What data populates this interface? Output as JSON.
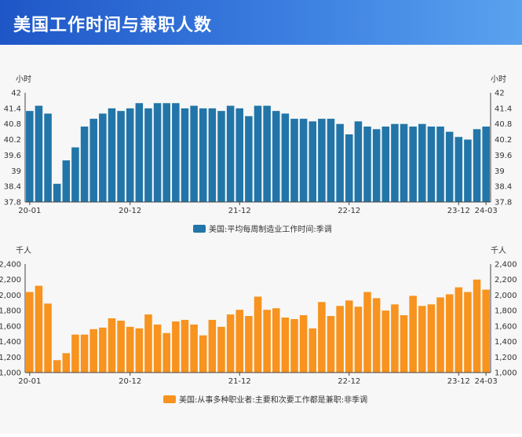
{
  "header": {
    "title": "美国工作时间与兼职人数"
  },
  "chart_data": [
    {
      "type": "bar",
      "title": "",
      "ylabel_left": "小时",
      "ylabel_right": "小时",
      "ylim": [
        37.8,
        42
      ],
      "yticks": [
        37.8,
        38.4,
        39,
        39.6,
        40.2,
        40.8,
        41.4,
        42
      ],
      "ytick_labels": [
        "37.8",
        "38.4",
        "39",
        "39.6",
        "40.2",
        "40.8",
        "41.4",
        "42"
      ],
      "x_tick_labels": [
        {
          "label": "20-01",
          "index": 0
        },
        {
          "label": "20-12",
          "index": 11
        },
        {
          "label": "21-12",
          "index": 23
        },
        {
          "label": "22-12",
          "index": 35
        },
        {
          "label": "23-12",
          "index": 47
        },
        {
          "label": "24-03",
          "index": 50
        }
      ],
      "legend_position": "bottom-center",
      "series": [
        {
          "name": "美国:平均每周制造业工作时间:季调",
          "color": "#2275a8",
          "values": [
            41.3,
            41.5,
            41.2,
            38.5,
            39.4,
            39.9,
            40.7,
            41.0,
            41.2,
            41.4,
            41.3,
            41.4,
            41.6,
            41.4,
            41.6,
            41.6,
            41.6,
            41.4,
            41.5,
            41.4,
            41.4,
            41.3,
            41.5,
            41.4,
            41.1,
            41.5,
            41.5,
            41.3,
            41.2,
            41.0,
            41.0,
            40.9,
            41.0,
            41.0,
            40.8,
            40.4,
            40.9,
            40.7,
            40.6,
            40.7,
            40.8,
            40.8,
            40.7,
            40.8,
            40.7,
            40.7,
            40.5,
            40.3,
            40.2,
            40.6,
            40.7
          ]
        }
      ]
    },
    {
      "type": "bar",
      "title": "",
      "ylabel_left": "千人",
      "ylabel_right": "千人",
      "ylim": [
        1000,
        2400
      ],
      "yticks": [
        1000,
        1200,
        1400,
        1600,
        1800,
        2000,
        2200,
        2400
      ],
      "ytick_labels": [
        "1,000",
        "1,200",
        "1,400",
        "1,600",
        "1,800",
        "2,000",
        "2,200",
        "2,400"
      ],
      "x_tick_labels": [
        {
          "label": "20-01",
          "index": 0
        },
        {
          "label": "20-12",
          "index": 11
        },
        {
          "label": "21-12",
          "index": 23
        },
        {
          "label": "22-12",
          "index": 35
        },
        {
          "label": "23-12",
          "index": 47
        },
        {
          "label": "24-03",
          "index": 50
        }
      ],
      "legend_position": "bottom-center",
      "series": [
        {
          "name": "美国:从事多种职业者:主要和次要工作都是兼职:非季调",
          "color": "#f7931e",
          "values": [
            2040,
            2120,
            1890,
            1160,
            1250,
            1490,
            1490,
            1560,
            1580,
            1700,
            1670,
            1590,
            1570,
            1750,
            1620,
            1510,
            1660,
            1680,
            1620,
            1480,
            1680,
            1590,
            1750,
            1810,
            1730,
            1980,
            1810,
            1830,
            1710,
            1690,
            1740,
            1570,
            1910,
            1730,
            1860,
            1930,
            1850,
            2040,
            1960,
            1800,
            1880,
            1740,
            1990,
            1860,
            1880,
            1970,
            2010,
            2100,
            2040,
            2200,
            2070
          ]
        }
      ]
    }
  ]
}
